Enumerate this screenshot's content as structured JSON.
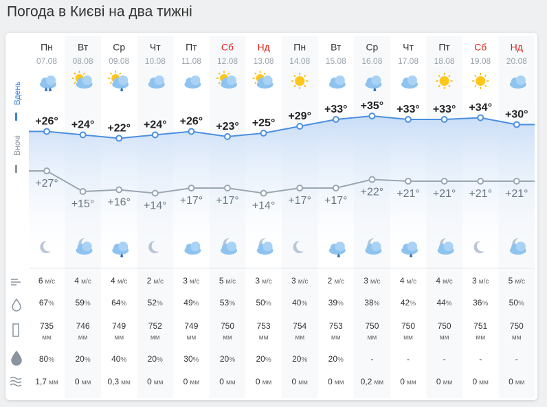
{
  "title": "Погода в Києві на два тижні",
  "side_labels": {
    "day": "Вдень",
    "night": "Вночі"
  },
  "units": {
    "wind": "м/с",
    "percent": "%",
    "pressure": "мм",
    "precip": "мм"
  },
  "days": [
    {
      "name": "Пн",
      "date": "07.08",
      "weekend": false,
      "day_temp": {
        "value": 26,
        "label": "+26°"
      },
      "night_temp": {
        "value": 27,
        "label": "+27°"
      },
      "wind": "6",
      "humidity": "67",
      "pressure": "735",
      "precip_chance": "80",
      "precip": "1,7"
    },
    {
      "name": "Вт",
      "date": "08.08",
      "weekend": false,
      "day_temp": {
        "value": 24,
        "label": "+24°"
      },
      "night_temp": {
        "value": 15,
        "label": "+15°"
      },
      "wind": "4",
      "humidity": "59",
      "pressure": "746",
      "precip_chance": "20",
      "precip": "0"
    },
    {
      "name": "Ср",
      "date": "09.08",
      "weekend": false,
      "day_temp": {
        "value": 22,
        "label": "+22°"
      },
      "night_temp": {
        "value": 16,
        "label": "+16°"
      },
      "wind": "4",
      "humidity": "64",
      "pressure": "749",
      "precip_chance": "40",
      "precip": "0,3"
    },
    {
      "name": "Чт",
      "date": "10.08",
      "weekend": false,
      "day_temp": {
        "value": 24,
        "label": "+24°"
      },
      "night_temp": {
        "value": 14,
        "label": "+14°"
      },
      "wind": "2",
      "humidity": "52",
      "pressure": "752",
      "precip_chance": "20",
      "precip": "0"
    },
    {
      "name": "Пт",
      "date": "11.08",
      "weekend": false,
      "day_temp": {
        "value": 26,
        "label": "+26°"
      },
      "night_temp": {
        "value": 17,
        "label": "+17°"
      },
      "wind": "3",
      "humidity": "49",
      "pressure": "749",
      "precip_chance": "30",
      "precip": "0"
    },
    {
      "name": "Сб",
      "date": "12.08",
      "weekend": true,
      "day_temp": {
        "value": 23,
        "label": "+23°"
      },
      "night_temp": {
        "value": 17,
        "label": "+17°"
      },
      "wind": "5",
      "humidity": "53",
      "pressure": "750",
      "precip_chance": "20",
      "precip": "0"
    },
    {
      "name": "Нд",
      "date": "13.08",
      "weekend": true,
      "day_temp": {
        "value": 25,
        "label": "+25°"
      },
      "night_temp": {
        "value": 14,
        "label": "+14°"
      },
      "wind": "3",
      "humidity": "50",
      "pressure": "753",
      "precip_chance": "20",
      "precip": "0"
    },
    {
      "name": "Пн",
      "date": "14.08",
      "weekend": false,
      "day_temp": {
        "value": 29,
        "label": "+29°"
      },
      "night_temp": {
        "value": 17,
        "label": "+17°"
      },
      "wind": "3",
      "humidity": "40",
      "pressure": "754",
      "precip_chance": "20",
      "precip": "0"
    },
    {
      "name": "Вт",
      "date": "15.08",
      "weekend": false,
      "day_temp": {
        "value": 33,
        "label": "+33°"
      },
      "night_temp": {
        "value": 17,
        "label": "+17°"
      },
      "wind": "2",
      "humidity": "39",
      "pressure": "753",
      "precip_chance": "20",
      "precip": "0"
    },
    {
      "name": "Ср",
      "date": "16.08",
      "weekend": false,
      "day_temp": {
        "value": 35,
        "label": "+35°"
      },
      "night_temp": {
        "value": 22,
        "label": "+22°"
      },
      "wind": "3",
      "humidity": "38",
      "pressure": "750",
      "precip_chance": "-",
      "precip": "0,2"
    },
    {
      "name": "Чт",
      "date": "17.08",
      "weekend": false,
      "day_temp": {
        "value": 33,
        "label": "+33°"
      },
      "night_temp": {
        "value": 21,
        "label": "+21°"
      },
      "wind": "4",
      "humidity": "42",
      "pressure": "750",
      "precip_chance": "-",
      "precip": "0"
    },
    {
      "name": "Пт",
      "date": "18.08",
      "weekend": false,
      "day_temp": {
        "value": 33,
        "label": "+33°"
      },
      "night_temp": {
        "value": 21,
        "label": "+21°"
      },
      "wind": "4",
      "humidity": "44",
      "pressure": "750",
      "precip_chance": "-",
      "precip": "0"
    },
    {
      "name": "Сб",
      "date": "19.08",
      "weekend": true,
      "day_temp": {
        "value": 34,
        "label": "+34°"
      },
      "night_temp": {
        "value": 21,
        "label": "+21°"
      },
      "wind": "3",
      "humidity": "36",
      "pressure": "751",
      "precip_chance": "-",
      "precip": "0"
    },
    {
      "name": "Нд",
      "date": "20.08",
      "weekend": true,
      "day_temp": {
        "value": 30,
        "label": "+30°"
      },
      "night_temp": {
        "value": 21,
        "label": "+21°"
      },
      "wind": "5",
      "humidity": "50",
      "pressure": "750",
      "precip_chance": "-",
      "precip": "0"
    }
  ]
}
